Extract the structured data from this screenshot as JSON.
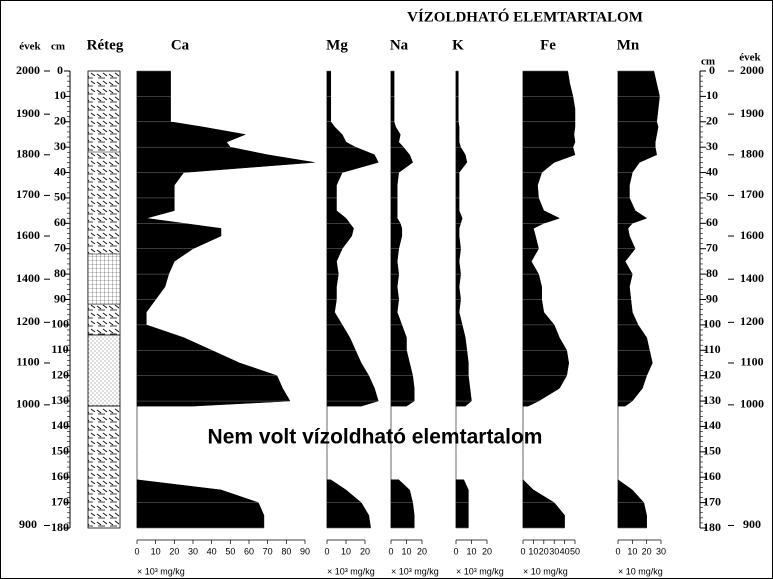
{
  "title": "VÍZOLDHATÓ ELEMTARTALOM",
  "annotation": "Nem volt vízoldható elemtartalom",
  "layer_label": "Réteg",
  "depth_axis": {
    "label": "cm",
    "years_label": "évek",
    "lim": [
      0,
      180
    ],
    "ticks": [
      0,
      10,
      20,
      30,
      40,
      50,
      60,
      70,
      80,
      90,
      100,
      110,
      120,
      130,
      140,
      150,
      160,
      170,
      180
    ],
    "year_ticks": [
      {
        "value": 0,
        "label": "2000"
      },
      {
        "value": 17,
        "label": "1900"
      },
      {
        "value": 33,
        "label": "1800"
      },
      {
        "value": 49,
        "label": "1700"
      },
      {
        "value": 65,
        "label": "1600"
      },
      {
        "value": 82,
        "label": "1400"
      },
      {
        "value": 99,
        "label": "1200"
      },
      {
        "value": 115,
        "label": "1100"
      },
      {
        "value": 131.5,
        "label": "1000"
      },
      {
        "value": 179,
        "label": "900"
      }
    ]
  },
  "depth": [
    0,
    5,
    10,
    15,
    20,
    22,
    25,
    28,
    30,
    33,
    36,
    40,
    45,
    50,
    55,
    58,
    60,
    62,
    65,
    70,
    75,
    80,
    85,
    90,
    95,
    100,
    105,
    110,
    115,
    120,
    125,
    130,
    132,
    145,
    161,
    165,
    170,
    175,
    180
  ],
  "chart_data": [
    {
      "type": "area",
      "title": "Ca",
      "unit": "× 10³ mg/kg",
      "xlim": [
        0,
        90
      ],
      "xticks": [
        0,
        10,
        20,
        30,
        40,
        50,
        60,
        70,
        80,
        90
      ],
      "values": [
        18,
        18,
        18,
        18,
        18,
        35,
        58,
        48,
        50,
        70,
        95,
        25,
        20,
        20,
        20,
        5,
        25,
        45,
        45,
        30,
        20,
        17,
        15,
        10,
        5,
        5,
        25,
        40,
        55,
        75,
        78,
        82,
        30,
        null,
        0,
        45,
        65,
        68,
        68
      ]
    },
    {
      "type": "area",
      "title": "Mg",
      "unit": "× 10³ mg/kg",
      "xlim": [
        0,
        20
      ],
      "xticks": [
        0,
        10,
        20
      ],
      "values": [
        2,
        2,
        2,
        2,
        2,
        4,
        8,
        10,
        15,
        25,
        27,
        8,
        5,
        5,
        5,
        10,
        12,
        14,
        13,
        8,
        5,
        6,
        5,
        5,
        4,
        8,
        12,
        15,
        18,
        22,
        25,
        27,
        18,
        null,
        2,
        10,
        18,
        22,
        23
      ]
    },
    {
      "type": "area",
      "title": "Na",
      "unit": "× 10³ mg/kg",
      "xlim": [
        0,
        20
      ],
      "xticks": [
        0,
        10,
        20
      ],
      "values": [
        2,
        2,
        2,
        2,
        2,
        3,
        6,
        5,
        8,
        12,
        14,
        5,
        4,
        4,
        4,
        4,
        6,
        7,
        7,
        5,
        4,
        5,
        4,
        5,
        4,
        7,
        10,
        10,
        12,
        14,
        15,
        15,
        10,
        null,
        5,
        12,
        14,
        15,
        15
      ]
    },
    {
      "type": "area",
      "title": "K",
      "unit": "× 10³ mg/kg",
      "xlim": [
        0,
        20
      ],
      "xticks": [
        0,
        10,
        20
      ],
      "values": [
        1.5,
        1.5,
        1.5,
        1.5,
        1.5,
        2,
        2,
        2,
        3,
        6,
        7,
        2,
        2,
        2,
        2,
        4,
        3,
        2,
        2,
        3,
        2,
        3,
        2,
        3,
        2,
        4,
        6,
        7,
        8,
        8,
        9,
        10,
        6,
        null,
        5,
        8,
        8,
        8,
        8
      ]
    },
    {
      "type": "area",
      "title": "Fe",
      "unit": "× 10 mg/kg",
      "xlim": [
        0,
        50
      ],
      "xticks": [
        0,
        10,
        20,
        30,
        40,
        50
      ],
      "values": [
        43,
        45,
        48,
        50,
        50,
        50,
        49,
        50,
        48,
        50,
        30,
        18,
        14,
        15,
        20,
        35,
        20,
        10,
        12,
        15,
        8,
        15,
        18,
        18,
        20,
        30,
        35,
        42,
        44,
        42,
        35,
        15,
        5,
        null,
        0,
        10,
        30,
        40,
        40
      ]
    },
    {
      "type": "area",
      "title": "Mn",
      "unit": "× 10 mg/kg",
      "xlim": [
        0,
        30
      ],
      "xticks": [
        0,
        10,
        20,
        30
      ],
      "values": [
        25,
        27,
        29,
        28,
        27,
        28,
        27,
        26,
        26,
        27,
        15,
        10,
        8,
        8,
        12,
        20,
        10,
        7,
        8,
        12,
        5,
        10,
        8,
        9,
        10,
        14,
        20,
        22,
        24,
        20,
        17,
        10,
        5,
        null,
        0,
        10,
        18,
        20,
        20
      ]
    }
  ]
}
